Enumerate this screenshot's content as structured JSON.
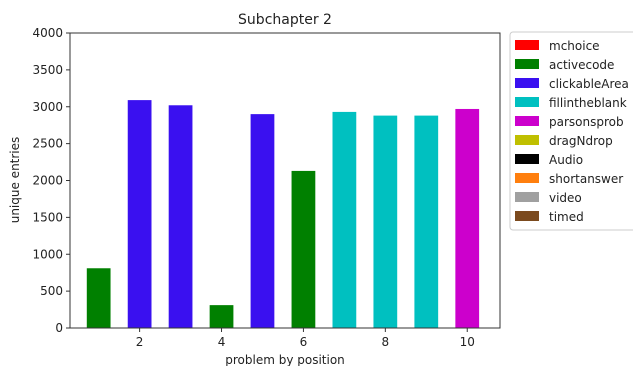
{
  "chart_data": {
    "type": "bar",
    "title": "Subchapter 2",
    "xlabel": "problem by position",
    "ylabel": "unique entries",
    "ylim": [
      0,
      4000
    ],
    "xlim": [
      0.3,
      10.8
    ],
    "yticks": [
      0,
      500,
      1000,
      1500,
      2000,
      2500,
      3000,
      3500,
      4000
    ],
    "xticks": [
      2,
      4,
      6,
      8,
      10
    ],
    "grid": false,
    "legend_position": "outside-right",
    "legend": [
      {
        "name": "mchoice",
        "color": "#ff0000"
      },
      {
        "name": "activecode",
        "color": "#008000"
      },
      {
        "name": "clickableArea",
        "color": "#3a10f0"
      },
      {
        "name": "fillintheblank",
        "color": "#00c0c0"
      },
      {
        "name": "parsonsprob",
        "color": "#cc00cc"
      },
      {
        "name": "dragNdrop",
        "color": "#bfbf00"
      },
      {
        "name": "Audio",
        "color": "#000000"
      },
      {
        "name": "shortanswer",
        "color": "#ff7f0e"
      },
      {
        "name": "video",
        "color": "#a0a0a0"
      },
      {
        "name": "timed",
        "color": "#7b4a1e"
      }
    ],
    "bars": [
      {
        "x": 1,
        "value": 810,
        "type": "activecode"
      },
      {
        "x": 2,
        "value": 3090,
        "type": "clickableArea"
      },
      {
        "x": 3,
        "value": 3020,
        "type": "clickableArea"
      },
      {
        "x": 4,
        "value": 310,
        "type": "activecode"
      },
      {
        "x": 5,
        "value": 2900,
        "type": "clickableArea"
      },
      {
        "x": 6,
        "value": 2130,
        "type": "activecode"
      },
      {
        "x": 7,
        "value": 2930,
        "type": "fillintheblank"
      },
      {
        "x": 8,
        "value": 2880,
        "type": "fillintheblank"
      },
      {
        "x": 9,
        "value": 2880,
        "type": "fillintheblank"
      },
      {
        "x": 10,
        "value": 2970,
        "type": "parsonsprob"
      }
    ]
  }
}
